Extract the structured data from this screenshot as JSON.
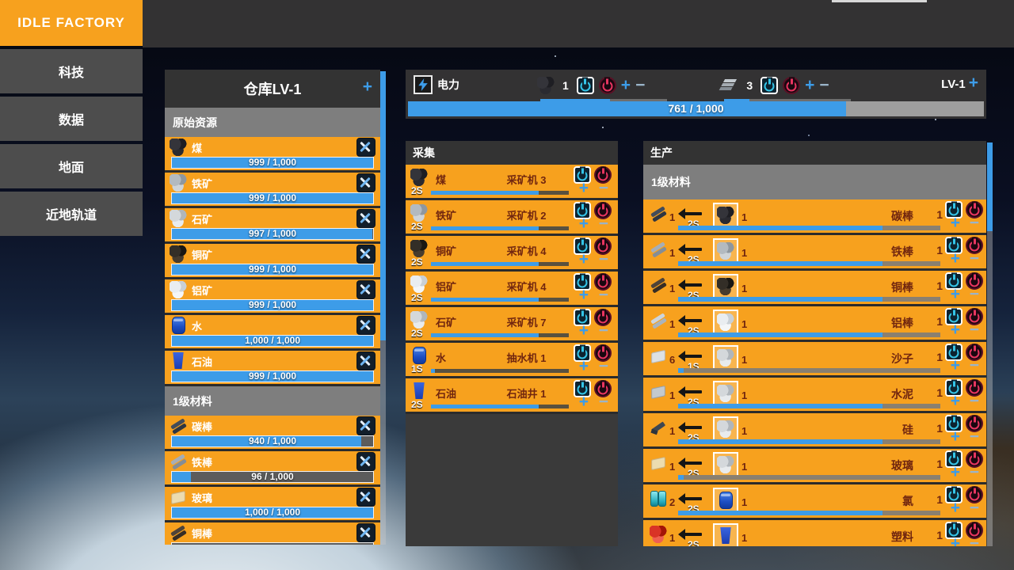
{
  "app": {
    "title": "IDLE FACTORY"
  },
  "ui": {
    "plus": "+",
    "minus": "−"
  },
  "colors": {
    "accent_orange": "#F7A11E",
    "accent_blue": "#3D9CE8",
    "power_on": "#35C5E8",
    "power_off": "#E83560"
  },
  "sidebar": {
    "items": [
      {
        "label": "科技"
      },
      {
        "label": "数据"
      },
      {
        "label": "地面"
      },
      {
        "label": "近地轨道"
      }
    ]
  },
  "warehouse": {
    "title": "仓库LV-1",
    "section1": "原始资源",
    "items1": [
      {
        "icon": "coal",
        "name": "煤",
        "value": "999 / 1,000",
        "pct": 99.9
      },
      {
        "icon": "ironore",
        "name": "铁矿",
        "value": "999 / 1,000",
        "pct": 99.9
      },
      {
        "icon": "stoneore",
        "name": "石矿",
        "value": "997 / 1,000",
        "pct": 99.7
      },
      {
        "icon": "copperore",
        "name": "铜矿",
        "value": "999 / 1,000",
        "pct": 99.9
      },
      {
        "icon": "alumore",
        "name": "铝矿",
        "value": "999 / 1,000",
        "pct": 99.9
      },
      {
        "icon": "water",
        "name": "水",
        "value": "1,000 / 1,000",
        "pct": 100
      },
      {
        "icon": "oil",
        "name": "石油",
        "value": "999 / 1,000",
        "pct": 99.9
      }
    ],
    "section2": "1级材料",
    "items2": [
      {
        "icon": "carbonrod",
        "name": "碳棒",
        "value": "940 / 1,000",
        "pct": 94
      },
      {
        "icon": "ironrod",
        "name": "铁棒",
        "value": "96 / 1,000",
        "pct": 9.6
      },
      {
        "icon": "glass",
        "name": "玻璃",
        "value": "1,000 / 1,000",
        "pct": 100
      },
      {
        "icon": "copperrod",
        "name": "铜棒",
        "value": "",
        "pct": 0
      }
    ]
  },
  "power": {
    "label": "电力",
    "level": "LV-1",
    "generators": [
      {
        "icon": "coal",
        "count": "1",
        "pct": 55
      },
      {
        "icon": "ironplate",
        "count": "3",
        "pct": 20
      }
    ],
    "bar": {
      "text": "761 / 1,000",
      "pct": 76.1
    }
  },
  "collection": {
    "title": "采集",
    "items": [
      {
        "icon": "coal",
        "name": "煤",
        "machine": "采矿机 3",
        "time": "2S",
        "pct": 78
      },
      {
        "icon": "ironore",
        "name": "铁矿",
        "machine": "采矿机 2",
        "time": "2S",
        "pct": 78
      },
      {
        "icon": "copperore",
        "name": "铜矿",
        "machine": "采矿机 4",
        "time": "2S",
        "pct": 78
      },
      {
        "icon": "alumore",
        "name": "铝矿",
        "machine": "采矿机 4",
        "time": "2S",
        "pct": 78
      },
      {
        "icon": "stoneore",
        "name": "石矿",
        "machine": "采矿机 7",
        "time": "2S",
        "pct": 78
      },
      {
        "icon": "water",
        "name": "水",
        "machine": "抽水机 1",
        "time": "1S",
        "pct": 3
      },
      {
        "icon": "oil",
        "name": "石油",
        "machine": "石油井 1",
        "time": "2S",
        "pct": 78
      }
    ]
  },
  "production": {
    "title": "生产",
    "section": "1级材料",
    "items": [
      {
        "out_icon": "carbonrod",
        "out_count": "1",
        "in_icon": "coal",
        "in_count": "1",
        "time": "2S",
        "name": "碳棒",
        "count": "1",
        "pct": 78
      },
      {
        "out_icon": "ironrod",
        "out_count": "1",
        "in_icon": "ironore",
        "in_count": "1",
        "time": "2S",
        "name": "铁棒",
        "count": "1",
        "pct": 78
      },
      {
        "out_icon": "copperrod",
        "out_count": "1",
        "in_icon": "copperore",
        "in_count": "1",
        "time": "2S",
        "name": "铜棒",
        "count": "1",
        "pct": 78
      },
      {
        "out_icon": "alumrod",
        "out_count": "1",
        "in_icon": "alumore",
        "in_count": "1",
        "time": "2S",
        "name": "铝棒",
        "count": "1",
        "pct": 78
      },
      {
        "out_icon": "sand",
        "out_count": "6",
        "in_icon": "stoneore",
        "in_count": "1",
        "time": "1S",
        "name": "沙子",
        "count": "1",
        "pct": 2
      },
      {
        "out_icon": "cement",
        "out_count": "1",
        "in_icon": "stoneore",
        "in_count": "1",
        "time": "2S",
        "name": "水泥",
        "count": "1",
        "pct": 78
      },
      {
        "out_icon": "silicon",
        "out_count": "1",
        "in_icon": "stoneore",
        "in_count": "1",
        "time": "2S",
        "name": "硅",
        "count": "1",
        "pct": 78
      },
      {
        "out_icon": "glass",
        "out_count": "1",
        "in_icon": "stoneore",
        "in_count": "1",
        "time": "2S",
        "name": "玻璃",
        "count": "1",
        "pct": 2
      },
      {
        "out_icon": "chlorine",
        "out_count": "2",
        "in_icon": "water",
        "in_count": "1",
        "time": "2S",
        "name": "氯",
        "count": "1",
        "pct": 78
      },
      {
        "out_icon": "plastic",
        "out_count": "1",
        "in_icon": "oil",
        "in_count": "1",
        "time": "2S",
        "name": "塑料",
        "count": "1",
        "pct": 0
      }
    ]
  }
}
